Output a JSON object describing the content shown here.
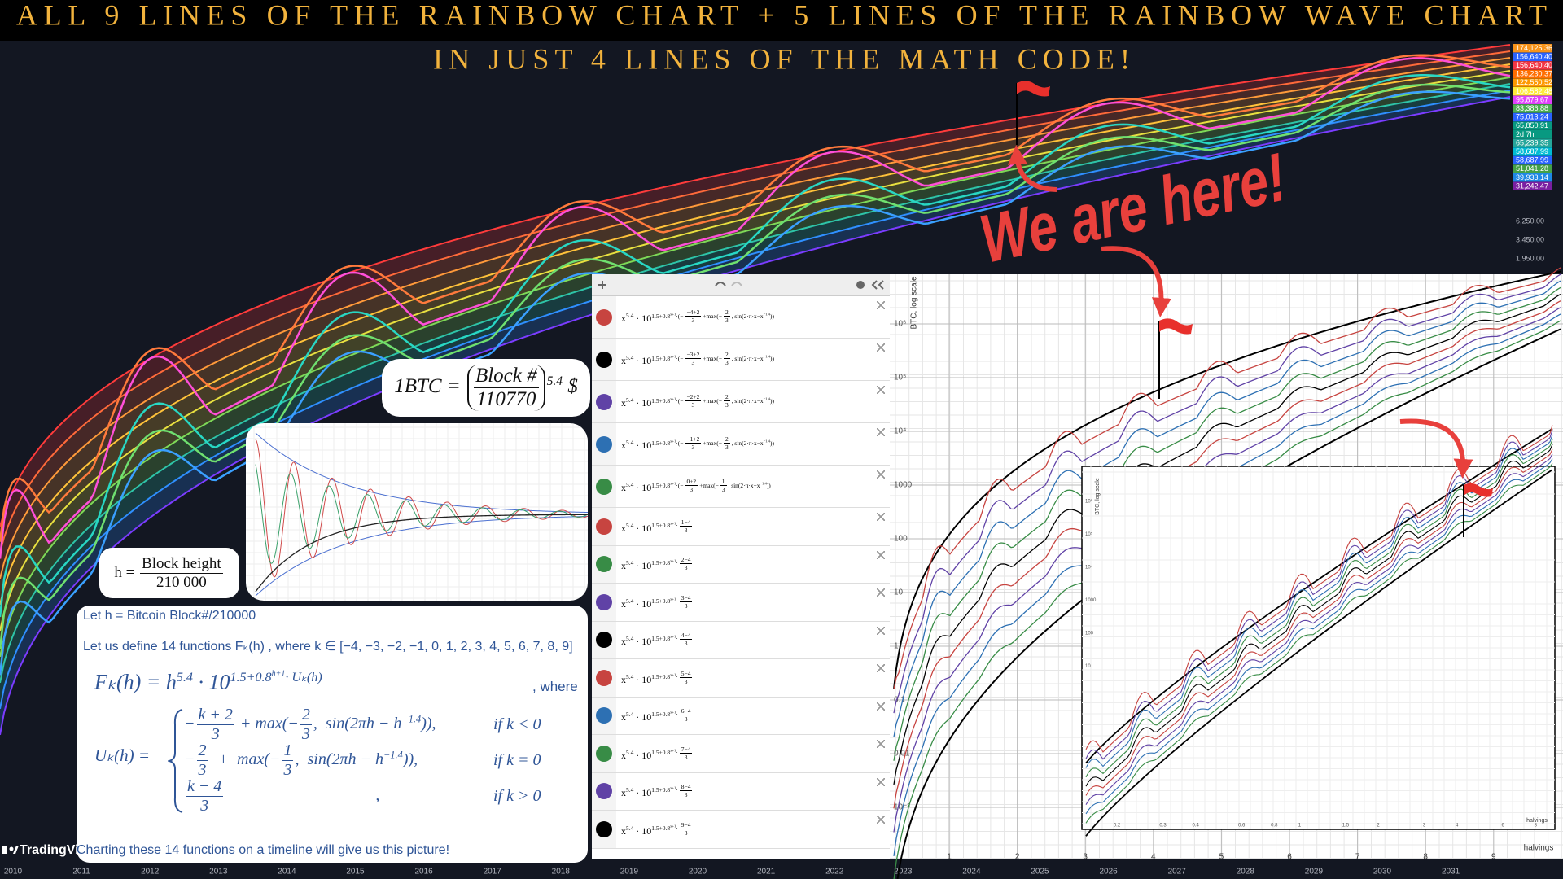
{
  "header": {
    "title_line1": "ALL 9 LINES OF THE RAINBOW CHART + 5 LINES OF THE RAINBOW WAVE CHART",
    "title_line2": "IN JUST 4 LINES OF THE MATH CODE!"
  },
  "callout": "We are here!",
  "watermark": "TradingVi",
  "price_scale": [
    {
      "label": "174,125.36",
      "color": "#f7931a"
    },
    {
      "label": "156,640.40",
      "color": "#2962ff"
    },
    {
      "label": "156,640.40",
      "color": "#f23645"
    },
    {
      "label": "136,230.37",
      "color": "#ff6d00"
    },
    {
      "label": "122,550.52",
      "color": "#ff9800"
    },
    {
      "label": "106,582.48",
      "color": "#ffeb3b"
    },
    {
      "label": "95,879.67",
      "color": "#e040fb"
    },
    {
      "label": "83,386.88",
      "color": "#4caf50"
    },
    {
      "label": "75,013.24",
      "color": "#2962ff"
    },
    {
      "label": "65,850.91",
      "color": "#089981"
    },
    {
      "label": "2d 7h",
      "color": "#089981"
    },
    {
      "label": "65,239.35",
      "color": "#26a69a"
    },
    {
      "label": "58,687.99",
      "color": "#00bcd4"
    },
    {
      "label": "58,687.99",
      "color": "#2962ff"
    },
    {
      "label": "51,041.28",
      "color": "#43a047"
    },
    {
      "label": "39,933.14",
      "color": "#1e88e5"
    },
    {
      "label": "31,242.47",
      "color": "#7b1fa2"
    }
  ],
  "price_scale_plain": [
    "6,250.00",
    "3,450.00",
    "1,950.00"
  ],
  "time_axis": [
    "2010",
    "2011",
    "2012",
    "2013",
    "2014",
    "2015",
    "2016",
    "2017",
    "2018",
    "2019",
    "2020",
    "2021",
    "2022",
    "2023",
    "2024",
    "2025",
    "2026",
    "2027",
    "2028",
    "2029",
    "2030",
    "2031"
  ],
  "formula_btc": [
    "1BTC = ",
    {
      "num": "Block #",
      "den": "110770",
      "paren": true
    },
    {
      "sup": "5.4"
    },
    " $"
  ],
  "formula_h": [
    "h = ",
    {
      "num": "Block height",
      "den": "210 000"
    }
  ],
  "explanation": {
    "line1": "Let h = Bitcoin Block#/210000",
    "line2": "Let us define 14 functions Fₖ(h) , where k ∈ [−4, −3, −2, −1, 0, 1, 2, 3, 4, 5, 6, 7, 8, 9]",
    "main": [
      "Fₖ(h) = h",
      {
        "sup": "5.4"
      },
      " · 10",
      {
        "sup": [
          "1.5+0.8",
          {
            "sup": "h+1"
          },
          "· Uₖ(h)"
        ]
      }
    ],
    "where": ", where",
    "u_lhs": "Uₖ(h) =",
    "cases": [
      {
        "expr": [
          "−",
          {
            "num": "k + 2",
            "den": "3"
          },
          " + max(−",
          {
            "num": "2",
            "den": "3"
          },
          ",  sin(2πh − h",
          {
            "sup": "−1.4"
          },
          ")),"
        ],
        "cond": "if k < 0"
      },
      {
        "expr": [
          "−",
          {
            "num": "2",
            "den": "3"
          },
          "  +  max(−",
          {
            "num": "1",
            "den": "3"
          },
          ",  sin(2πh − h",
          {
            "sup": "−1.4"
          },
          ")),"
        ],
        "cond": "if k = 0"
      },
      {
        "expr": [
          {
            "num": "k − 4",
            "den": "3"
          },
          "                                     ,"
        ],
        "cond": "if k > 0"
      }
    ],
    "footer": "Charting these 14 functions on a timeline will give us this picture!"
  },
  "desmos": [
    {
      "color": "#c74440",
      "expr": [
        "x",
        {
          "sup": "5.4"
        },
        " · 10",
        {
          "sup": [
            "1.5+0.8",
            {
              "sup": "x+1"
            },
            "·(−",
            {
              "num": "−4+2",
              "den": "3"
            },
            "+max(−",
            {
              "num": "2",
              "den": "3"
            },
            ", sin(2·π·x−x",
            {
              "sup": "−1.4"
            },
            "))"
          ]
        }
      ]
    },
    {
      "color": "#000000",
      "expr": [
        "x",
        {
          "sup": "5.4"
        },
        " · 10",
        {
          "sup": [
            "1.5+0.8",
            {
              "sup": "x+1"
            },
            "·(−",
            {
              "num": "−3+2",
              "den": "3"
            },
            "+max(−",
            {
              "num": "2",
              "den": "3"
            },
            ", sin(2·π·x−x",
            {
              "sup": "−1.4"
            },
            "))"
          ]
        }
      ]
    },
    {
      "color": "#6042a6",
      "expr": [
        "x",
        {
          "sup": "5.4"
        },
        " · 10",
        {
          "sup": [
            "1.5+0.8",
            {
              "sup": "x+1"
            },
            "·(−",
            {
              "num": "−2+2",
              "den": "3"
            },
            "+max(−",
            {
              "num": "2",
              "den": "3"
            },
            ", sin(2·π·x−x",
            {
              "sup": "−1.4"
            },
            "))"
          ]
        }
      ]
    },
    {
      "color": "#2d70b3",
      "expr": [
        "x",
        {
          "sup": "5.4"
        },
        " · 10",
        {
          "sup": [
            "1.5+0.8",
            {
              "sup": "x+1"
            },
            "·(−",
            {
              "num": "−1+2",
              "den": "3"
            },
            "+max(−",
            {
              "num": "2",
              "den": "3"
            },
            ", sin(2·π·x−x",
            {
              "sup": "−1.4"
            },
            "))"
          ]
        }
      ]
    },
    {
      "color": "#388c46",
      "expr": [
        "x",
        {
          "sup": "5.4"
        },
        " · 10",
        {
          "sup": [
            "1.5+0.8",
            {
              "sup": "x+1"
            },
            "·(−",
            {
              "num": "0+2",
              "den": "3"
            },
            "+max(−",
            {
              "num": "1",
              "den": "3"
            },
            ", sin(2·π·x−x",
            {
              "sup": "−1.4"
            },
            "))"
          ]
        }
      ]
    },
    {
      "color": "#c74440",
      "expr": [
        "x",
        {
          "sup": "5.4"
        },
        " · 10",
        {
          "sup": [
            "1.5+0.8",
            {
              "sup": "x+1"
            },
            "·",
            {
              "num": "1−4",
              "den": "3"
            }
          ]
        }
      ]
    },
    {
      "color": "#388c46",
      "expr": [
        "x",
        {
          "sup": "5.4"
        },
        " · 10",
        {
          "sup": [
            "1.5+0.8",
            {
              "sup": "x+1"
            },
            "·",
            {
              "num": "2−4",
              "den": "3"
            }
          ]
        }
      ]
    },
    {
      "color": "#6042a6",
      "expr": [
        "x",
        {
          "sup": "5.4"
        },
        " · 10",
        {
          "sup": [
            "1.5+0.8",
            {
              "sup": "x+1"
            },
            "·",
            {
              "num": "3−4",
              "den": "3"
            }
          ]
        }
      ]
    },
    {
      "color": "#000000",
      "expr": [
        "x",
        {
          "sup": "5.4"
        },
        " · 10",
        {
          "sup": [
            "1.5+0.8",
            {
              "sup": "x+1"
            },
            "·",
            {
              "num": "4−4",
              "den": "3"
            }
          ]
        }
      ]
    },
    {
      "color": "#c74440",
      "expr": [
        "x",
        {
          "sup": "5.4"
        },
        " · 10",
        {
          "sup": [
            "1.5+0.8",
            {
              "sup": "x+1"
            },
            "·",
            {
              "num": "5−4",
              "den": "3"
            }
          ]
        }
      ]
    },
    {
      "color": "#2d70b3",
      "expr": [
        "x",
        {
          "sup": "5.4"
        },
        " · 10",
        {
          "sup": [
            "1.5+0.8",
            {
              "sup": "x+1"
            },
            "·",
            {
              "num": "6−4",
              "den": "3"
            }
          ]
        }
      ]
    },
    {
      "color": "#388c46",
      "expr": [
        "x",
        {
          "sup": "5.4"
        },
        " · 10",
        {
          "sup": [
            "1.5+0.8",
            {
              "sup": "x+1"
            },
            "·",
            {
              "num": "7−4",
              "den": "3"
            }
          ]
        }
      ]
    },
    {
      "color": "#6042a6",
      "expr": [
        "x",
        {
          "sup": "5.4"
        },
        " · 10",
        {
          "sup": [
            "1.5+0.8",
            {
              "sup": "x+1"
            },
            "·",
            {
              "num": "8−4",
              "den": "3"
            }
          ]
        }
      ]
    },
    {
      "color": "#000000",
      "expr": [
        "x",
        {
          "sup": "5.4"
        },
        " · 10",
        {
          "sup": [
            "1.5+0.8",
            {
              "sup": "x+1"
            },
            "·",
            {
              "num": "9−4",
              "den": "3"
            }
          ]
        }
      ]
    }
  ],
  "graph": {
    "y_axis_title": "BTC, log scale",
    "y_labels": [
      "10⁶",
      "10⁵",
      "10⁴",
      "1000",
      "100",
      "10",
      "1",
      "0.1",
      "0.01",
      "10⁻³"
    ],
    "x_labels": [
      "1",
      "2",
      "3",
      "4",
      "5",
      "6",
      "7",
      "8",
      "9"
    ],
    "x_axis_title": "halvings"
  },
  "inset": {
    "y_axis_title": "BTC, log scale",
    "y_labels": [
      "10⁶",
      "10⁵",
      "10⁴",
      "1000",
      "100",
      "10"
    ],
    "x_labels": [
      "0.2",
      "0.3",
      "0.4",
      "0.6",
      "0.8",
      "1",
      "1.5",
      "2",
      "3",
      "4",
      "6",
      "8"
    ],
    "x_axis_title": "halvings"
  }
}
